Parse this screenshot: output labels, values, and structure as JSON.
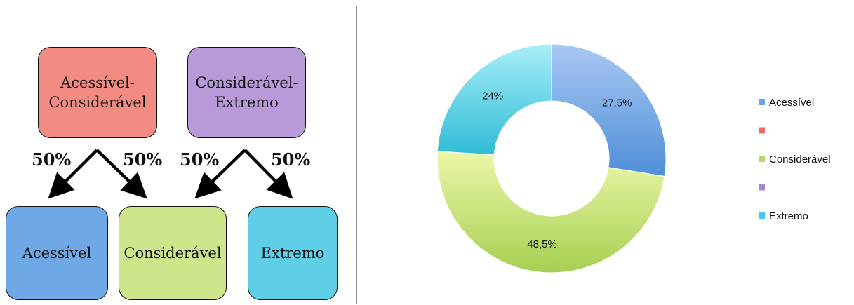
{
  "diagram": {
    "top_left": "Acessível-Considerável",
    "top_right": "Considerável-Extremo",
    "bottom_left": "Acessível",
    "bottom_middle": "Considerável",
    "bottom_right": "Extremo",
    "arrow_labels": [
      "50%",
      "50%",
      "50%",
      "50%"
    ],
    "colors": {
      "top_left": "#f28b82",
      "top_right": "#b89ad8",
      "bottom_left": "#6fa8e6",
      "bottom_middle": "#cfe58c",
      "bottom_right": "#5ecfe6"
    }
  },
  "chart_data": {
    "type": "pie",
    "variant": "doughnut",
    "slices": [
      {
        "name": "Acessível",
        "value": 27.5,
        "label": "27,5%",
        "color": "#6fa3e0"
      },
      {
        "name": "",
        "value": 0,
        "label": "",
        "color": "#ee6a6a"
      },
      {
        "name": "Considerável",
        "value": 48.5,
        "label": "48,5%",
        "color": "#b5d96c"
      },
      {
        "name": "",
        "value": 0,
        "label": "",
        "color": "#a884d2"
      },
      {
        "name": "Extremo",
        "value": 24,
        "label": "24%",
        "color": "#4fc6df"
      }
    ],
    "legend_position": "right"
  }
}
